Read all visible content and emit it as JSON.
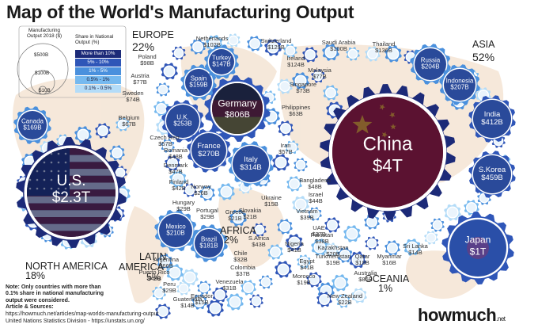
{
  "title": "Map of the World's Manufacturing Output",
  "legend": {
    "size_title": "Manufacturing Output 2018 ($)",
    "size_items": [
      "$500B",
      "$100B",
      "$10B"
    ],
    "share_title": "Share in National Output (%)",
    "share_items": [
      {
        "label": "More than 10%",
        "color": "#1c2a78"
      },
      {
        "label": "5% - 10%",
        "color": "#2f56b8"
      },
      {
        "label": "1% - 5%",
        "color": "#4a90dd"
      },
      {
        "label": "0.5% - 1%",
        "color": "#76b9ef"
      },
      {
        "label": "0.1% - 0.5%",
        "color": "#b4dcf8"
      }
    ]
  },
  "regions": {
    "europe": {
      "name": "EUROPE",
      "share": "22%"
    },
    "asia": {
      "name": "ASIA",
      "share": "52%"
    },
    "north_america": {
      "name": "NORTH AMERICA",
      "share": "18%"
    },
    "latin_america": {
      "name": "LATIN AMERICA",
      "share": "5%"
    },
    "africa": {
      "name": "AFRICA",
      "share": "2%"
    },
    "oceania": {
      "name": "OCEANIA",
      "share": "1%"
    }
  },
  "big_gears": {
    "china": {
      "name": "China",
      "value": "$4T"
    },
    "us": {
      "name": "U.S.",
      "value": "$2.3T"
    },
    "germany": {
      "name": "Germany",
      "value": "$806B"
    },
    "japan": {
      "name": "Japan",
      "value": "$1T"
    }
  },
  "medium_gears": [
    {
      "name": "U.K.",
      "value": "$253B"
    },
    {
      "name": "France",
      "value": "$270B"
    },
    {
      "name": "Italy",
      "value": "$314B"
    },
    {
      "name": "India",
      "value": "$412B"
    },
    {
      "name": "S.Korea",
      "value": "$459B"
    },
    {
      "name": "Russia",
      "value": "$204B"
    },
    {
      "name": "Indonesia",
      "value": "$207B"
    },
    {
      "name": "Canada",
      "value": "$169B"
    },
    {
      "name": "Spain",
      "value": "$159B"
    },
    {
      "name": "Turkey",
      "value": "$147B"
    },
    {
      "name": "Mexico",
      "value": "$210B"
    },
    {
      "name": "Brazil",
      "value": "$181B"
    }
  ],
  "outer_labels": [
    {
      "name": "Netherlands",
      "value": "$102B"
    },
    {
      "name": "Switzerland",
      "value": "$129B"
    },
    {
      "name": "Saudi Arabia",
      "value": "$100B"
    },
    {
      "name": "Thailand",
      "value": "$136B"
    },
    {
      "name": "Poland",
      "value": "$98B"
    },
    {
      "name": "Ireland",
      "value": "$124B"
    },
    {
      "name": "Malaysia",
      "value": "$77B"
    },
    {
      "name": "Austria",
      "value": "$77B"
    },
    {
      "name": "Singapore",
      "value": "$73B"
    },
    {
      "name": "Sweden",
      "value": "$74B"
    },
    {
      "name": "Philippines",
      "value": "$63B"
    },
    {
      "name": "Belgium",
      "value": "$67B"
    },
    {
      "name": "Czech Rep.",
      "value": "$57B"
    },
    {
      "name": "Iran",
      "value": "$57B"
    },
    {
      "name": "Romania",
      "value": "$48B"
    },
    {
      "name": "Denmark",
      "value": "$47B"
    },
    {
      "name": "Bangladesh",
      "value": "$48B"
    },
    {
      "name": "Finland",
      "value": "$42B"
    },
    {
      "name": "Norway",
      "value": "$26B"
    },
    {
      "name": "Israel",
      "value": "$44B"
    },
    {
      "name": "Hungary",
      "value": "$29B"
    },
    {
      "name": "Ukraine",
      "value": "$15B"
    },
    {
      "name": "Portugal",
      "value": "$29B"
    },
    {
      "name": "Greece",
      "value": "$21B"
    },
    {
      "name": "Slovakia",
      "value": "$21B"
    },
    {
      "name": "Vietnam",
      "value": "$39B"
    },
    {
      "name": "UAE",
      "value": "$37B"
    },
    {
      "name": "Pakistan",
      "value": "$38B"
    },
    {
      "name": "S.Africa",
      "value": "$43B"
    },
    {
      "name": "Nigeria",
      "value": "$41B"
    },
    {
      "name": "Kazakhstan",
      "value": "$20B"
    },
    {
      "name": "Sri Lanka",
      "value": "$14B"
    },
    {
      "name": "Argentina",
      "value": "$66B"
    },
    {
      "name": "Chile",
      "value": "$32B"
    },
    {
      "name": "Turkmenistan",
      "value": "$19B"
    },
    {
      "name": "Qatar",
      "value": "$18B"
    },
    {
      "name": "Myanmar",
      "value": "$16B"
    },
    {
      "name": "Egypt",
      "value": "$41B"
    },
    {
      "name": "Australia",
      "value": "$86B"
    },
    {
      "name": "Puerto Rico",
      "value": "$49B"
    },
    {
      "name": "Colombia",
      "value": "$37B"
    },
    {
      "name": "Morocco",
      "value": "$19B"
    },
    {
      "name": "Peru",
      "value": "$29B"
    },
    {
      "name": "Venezuela",
      "value": "$31B"
    },
    {
      "name": "Ecuador",
      "value": "$15B"
    },
    {
      "name": "Guatemala",
      "value": "$14B"
    },
    {
      "name": "New Zealand",
      "value": "$22B"
    }
  ],
  "notes": {
    "note": "Note: Only countries with more than 0.1% share in national manufacturing output were considered.",
    "sources_title": "Article & Sources:",
    "source1": "https://howmuch.net/articles/map-worlds-manufacturing-output",
    "source2": "United Nations Statistics Division - https://unstats.un.org/"
  },
  "brand": {
    "name": "howmuch",
    "suffix": ".net"
  }
}
